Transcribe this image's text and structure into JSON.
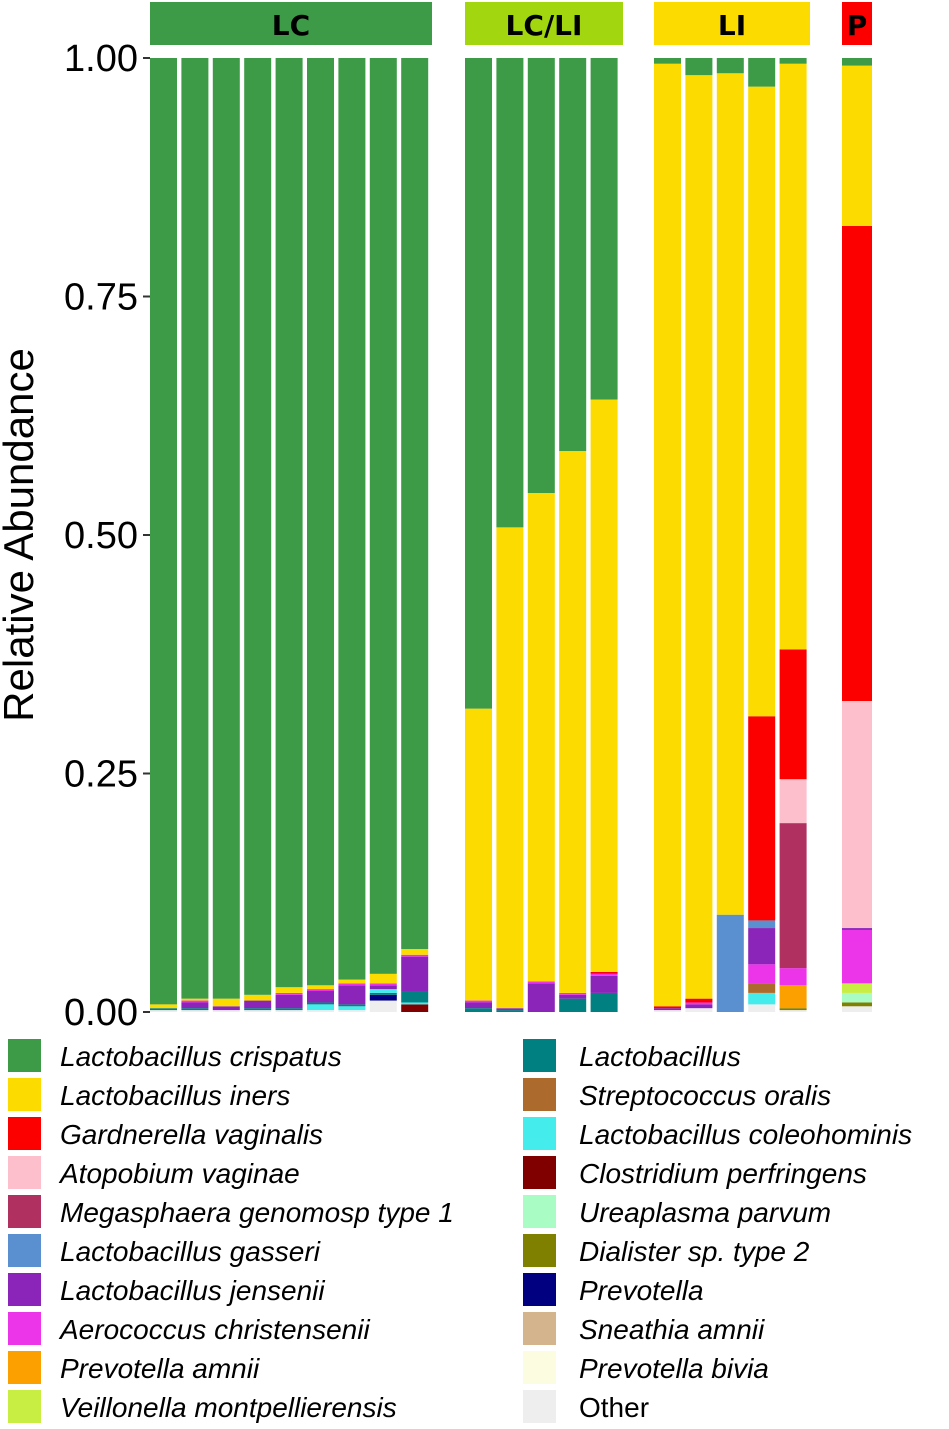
{
  "chart_data": {
    "type": "stacked-bar",
    "ylabel": "Relative Abundance",
    "ylim": [
      0,
      1
    ],
    "yticks": [
      "0.00",
      "0.25",
      "0.50",
      "0.75",
      "1.00"
    ],
    "groups": [
      {
        "label": "LC",
        "color": "#3d9a46",
        "bars": 9
      },
      {
        "label": "LC/LI",
        "color": "#a2d60e",
        "bars": 5
      },
      {
        "label": "LI",
        "color": "#fcdc00",
        "bars": 5
      },
      {
        "label": "P",
        "color": "#fc0000",
        "bars": 1
      }
    ],
    "species": [
      {
        "name": "Lactobacillus crispatus",
        "color": "#3d9a46"
      },
      {
        "name": "Lactobacillus iners",
        "color": "#fcdc00"
      },
      {
        "name": "Gardnerella vaginalis",
        "color": "#fc0000"
      },
      {
        "name": "Atopobium vaginae",
        "color": "#fcbfcb"
      },
      {
        "name": "Megasphaera genomosp type 1",
        "color": "#b03060"
      },
      {
        "name": "Lactobacillus gasseri",
        "color": "#5a8fd0"
      },
      {
        "name": "Lactobacillus jensenii",
        "color": "#8b24b8"
      },
      {
        "name": "Aerococcus christensenii",
        "color": "#ec34e8"
      },
      {
        "name": "Prevotella amnii",
        "color": "#fca000"
      },
      {
        "name": "Veillonella montpellierensis",
        "color": "#c8ee44"
      },
      {
        "name": "Lactobacillus",
        "color": "#008080"
      },
      {
        "name": "Streptococcus oralis",
        "color": "#ac6a2c"
      },
      {
        "name": "Lactobacillus coleohominis",
        "color": "#44ecec"
      },
      {
        "name": "Clostridium perfringens",
        "color": "#800000"
      },
      {
        "name": "Ureaplasma parvum",
        "color": "#a8fcc4"
      },
      {
        "name": "Dialister sp. type 2",
        "color": "#808000"
      },
      {
        "name": "Prevotella",
        "color": "#000080"
      },
      {
        "name": "Sneathia amnii",
        "color": "#d4b48c"
      },
      {
        "name": "Prevotella bivia",
        "color": "#fcfce0"
      },
      {
        "name": "Other",
        "color": "#eeeeee"
      }
    ],
    "samples": [
      {
        "group": "LC",
        "stack": [
          [
            "Other",
            0.002
          ],
          [
            "Lactobacillus",
            0.002
          ],
          [
            "Lactobacillus iners",
            0.004
          ],
          [
            "Lactobacillus crispatus",
            0.992
          ]
        ]
      },
      {
        "group": "LC",
        "stack": [
          [
            "Other",
            0.002
          ],
          [
            "Lactobacillus",
            0.002
          ],
          [
            "Lactobacillus jensenii",
            0.006
          ],
          [
            "Aerococcus christensenii",
            0.002
          ],
          [
            "Lactobacillus iners",
            0.002
          ],
          [
            "Lactobacillus crispatus",
            0.986
          ]
        ]
      },
      {
        "group": "LC",
        "stack": [
          [
            "Other",
            0.002
          ],
          [
            "Lactobacillus jensenii",
            0.004
          ],
          [
            "Lactobacillus iners",
            0.008
          ],
          [
            "Lactobacillus crispatus",
            0.986
          ]
        ]
      },
      {
        "group": "LC",
        "stack": [
          [
            "Other",
            0.002
          ],
          [
            "Lactobacillus",
            0.002
          ],
          [
            "Lactobacillus jensenii",
            0.008
          ],
          [
            "Lactobacillus iners",
            0.006
          ],
          [
            "Lactobacillus crispatus",
            0.982
          ]
        ]
      },
      {
        "group": "LC",
        "stack": [
          [
            "Other",
            0.002
          ],
          [
            "Lactobacillus",
            0.002
          ],
          [
            "Lactobacillus jensenii",
            0.014
          ],
          [
            "Aerococcus christensenii",
            0.002
          ],
          [
            "Lactobacillus iners",
            0.006
          ],
          [
            "Lactobacillus crispatus",
            0.974
          ]
        ]
      },
      {
        "group": "LC",
        "stack": [
          [
            "Other",
            0.002
          ],
          [
            "Lactobacillus coleohominis",
            0.006
          ],
          [
            "Lactobacillus",
            0.002
          ],
          [
            "Lactobacillus jensenii",
            0.012
          ],
          [
            "Aerococcus christensenii",
            0.002
          ],
          [
            "Lactobacillus iners",
            0.004
          ],
          [
            "Lactobacillus crispatus",
            0.972
          ]
        ]
      },
      {
        "group": "LC",
        "stack": [
          [
            "Other",
            0.002
          ],
          [
            "Lactobacillus coleohominis",
            0.004
          ],
          [
            "Lactobacillus",
            0.002
          ],
          [
            "Lactobacillus jensenii",
            0.02
          ],
          [
            "Aerococcus christensenii",
            0.002
          ],
          [
            "Lactobacillus iners",
            0.004
          ],
          [
            "Lactobacillus crispatus",
            0.966
          ]
        ]
      },
      {
        "group": "LC",
        "stack": [
          [
            "Other",
            0.012
          ],
          [
            "Prevotella",
            0.006
          ],
          [
            "Lactobacillus",
            0.002
          ],
          [
            "Lactobacillus coleohominis",
            0.004
          ],
          [
            "Lactobacillus jensenii",
            0.004
          ],
          [
            "Aerococcus christensenii",
            0.002
          ],
          [
            "Lactobacillus iners",
            0.01
          ],
          [
            "Lactobacillus crispatus",
            0.96
          ]
        ]
      },
      {
        "group": "LC",
        "stack": [
          [
            "Clostridium perfringens",
            0.008
          ],
          [
            "Lactobacillus coleohominis",
            0.002
          ],
          [
            "Lactobacillus",
            0.012
          ],
          [
            "Lactobacillus jensenii",
            0.036
          ],
          [
            "Aerococcus christensenii",
            0.002
          ],
          [
            "Lactobacillus iners",
            0.006
          ],
          [
            "Lactobacillus crispatus",
            0.934
          ]
        ]
      },
      {
        "group": "LC/LI",
        "stack": [
          [
            "Lactobacillus",
            0.004
          ],
          [
            "Lactobacillus jensenii",
            0.006
          ],
          [
            "Aerococcus christensenii",
            0.002
          ],
          [
            "Lactobacillus iners",
            0.306
          ],
          [
            "Lactobacillus crispatus",
            0.682
          ]
        ]
      },
      {
        "group": "LC/LI",
        "stack": [
          [
            "Lactobacillus",
            0.002
          ],
          [
            "Lactobacillus jensenii",
            0.002
          ],
          [
            "Lactobacillus iners",
            0.504
          ],
          [
            "Lactobacillus crispatus",
            0.492
          ]
        ]
      },
      {
        "group": "LC/LI",
        "stack": [
          [
            "Lactobacillus jensenii",
            0.03
          ],
          [
            "Aerococcus christensenii",
            0.002
          ],
          [
            "Lactobacillus iners",
            0.512
          ],
          [
            "Lactobacillus crispatus",
            0.456
          ]
        ]
      },
      {
        "group": "LC/LI",
        "stack": [
          [
            "Lactobacillus",
            0.014
          ],
          [
            "Lactobacillus jensenii",
            0.004
          ],
          [
            "Aerococcus christensenii",
            0.002
          ],
          [
            "Lactobacillus iners",
            0.568
          ],
          [
            "Lactobacillus crispatus",
            0.412
          ]
        ]
      },
      {
        "group": "LC/LI",
        "stack": [
          [
            "Lactobacillus",
            0.02
          ],
          [
            "Lactobacillus jensenii",
            0.018
          ],
          [
            "Aerococcus christensenii",
            0.002
          ],
          [
            "Gardnerella vaginalis",
            0.002
          ],
          [
            "Lactobacillus iners",
            0.6
          ],
          [
            "Lactobacillus crispatus",
            0.358
          ]
        ]
      },
      {
        "group": "LI",
        "stack": [
          [
            "Other",
            0.002
          ],
          [
            "Lactobacillus jensenii",
            0.002
          ],
          [
            "Gardnerella vaginalis",
            0.002
          ],
          [
            "Lactobacillus iners",
            0.988
          ],
          [
            "Lactobacillus crispatus",
            0.006
          ]
        ]
      },
      {
        "group": "LI",
        "stack": [
          [
            "Other",
            0.004
          ],
          [
            "Lactobacillus jensenii",
            0.004
          ],
          [
            "Aerococcus christensenii",
            0.002
          ],
          [
            "Gardnerella vaginalis",
            0.004
          ],
          [
            "Lactobacillus iners",
            0.968
          ],
          [
            "Lactobacillus crispatus",
            0.018
          ]
        ]
      },
      {
        "group": "LI",
        "stack": [
          [
            "Lactobacillus gasseri",
            0.102
          ],
          [
            "Lactobacillus iners",
            0.882
          ],
          [
            "Lactobacillus crispatus",
            0.016
          ]
        ]
      },
      {
        "group": "LI",
        "stack": [
          [
            "Other",
            0.008
          ],
          [
            "Lactobacillus coleohominis",
            0.012
          ],
          [
            "Streptococcus oralis",
            0.01
          ],
          [
            "Aerococcus christensenii",
            0.02
          ],
          [
            "Lactobacillus jensenii",
            0.038
          ],
          [
            "Lactobacillus gasseri",
            0.008
          ],
          [
            "Gardnerella vaginalis",
            0.214
          ],
          [
            "Lactobacillus iners",
            0.66
          ],
          [
            "Lactobacillus crispatus",
            0.03
          ]
        ]
      },
      {
        "group": "LI",
        "stack": [
          [
            "Other",
            0.002
          ],
          [
            "Dialister sp. type 2",
            0.002
          ],
          [
            "Prevotella amnii",
            0.024
          ],
          [
            "Aerococcus christensenii",
            0.018
          ],
          [
            "Megasphaera genomosp type 1",
            0.152
          ],
          [
            "Atopobium vaginae",
            0.046
          ],
          [
            "Gardnerella vaginalis",
            0.136
          ],
          [
            "Lactobacillus iners",
            0.614
          ],
          [
            "Lactobacillus crispatus",
            0.006
          ]
        ]
      },
      {
        "group": "P",
        "stack": [
          [
            "Other",
            0.006
          ],
          [
            "Dialister sp. type 2",
            0.004
          ],
          [
            "Ureaplasma parvum",
            0.01
          ],
          [
            "Veillonella montpellierensis",
            0.01
          ],
          [
            "Aerococcus christensenii",
            0.056
          ],
          [
            "Lactobacillus jensenii",
            0.002
          ],
          [
            "Atopobium vaginae",
            0.238
          ],
          [
            "Gardnerella vaginalis",
            0.498
          ],
          [
            "Lactobacillus iners",
            0.168
          ],
          [
            "Lactobacillus crispatus",
            0.008
          ]
        ]
      }
    ]
  }
}
